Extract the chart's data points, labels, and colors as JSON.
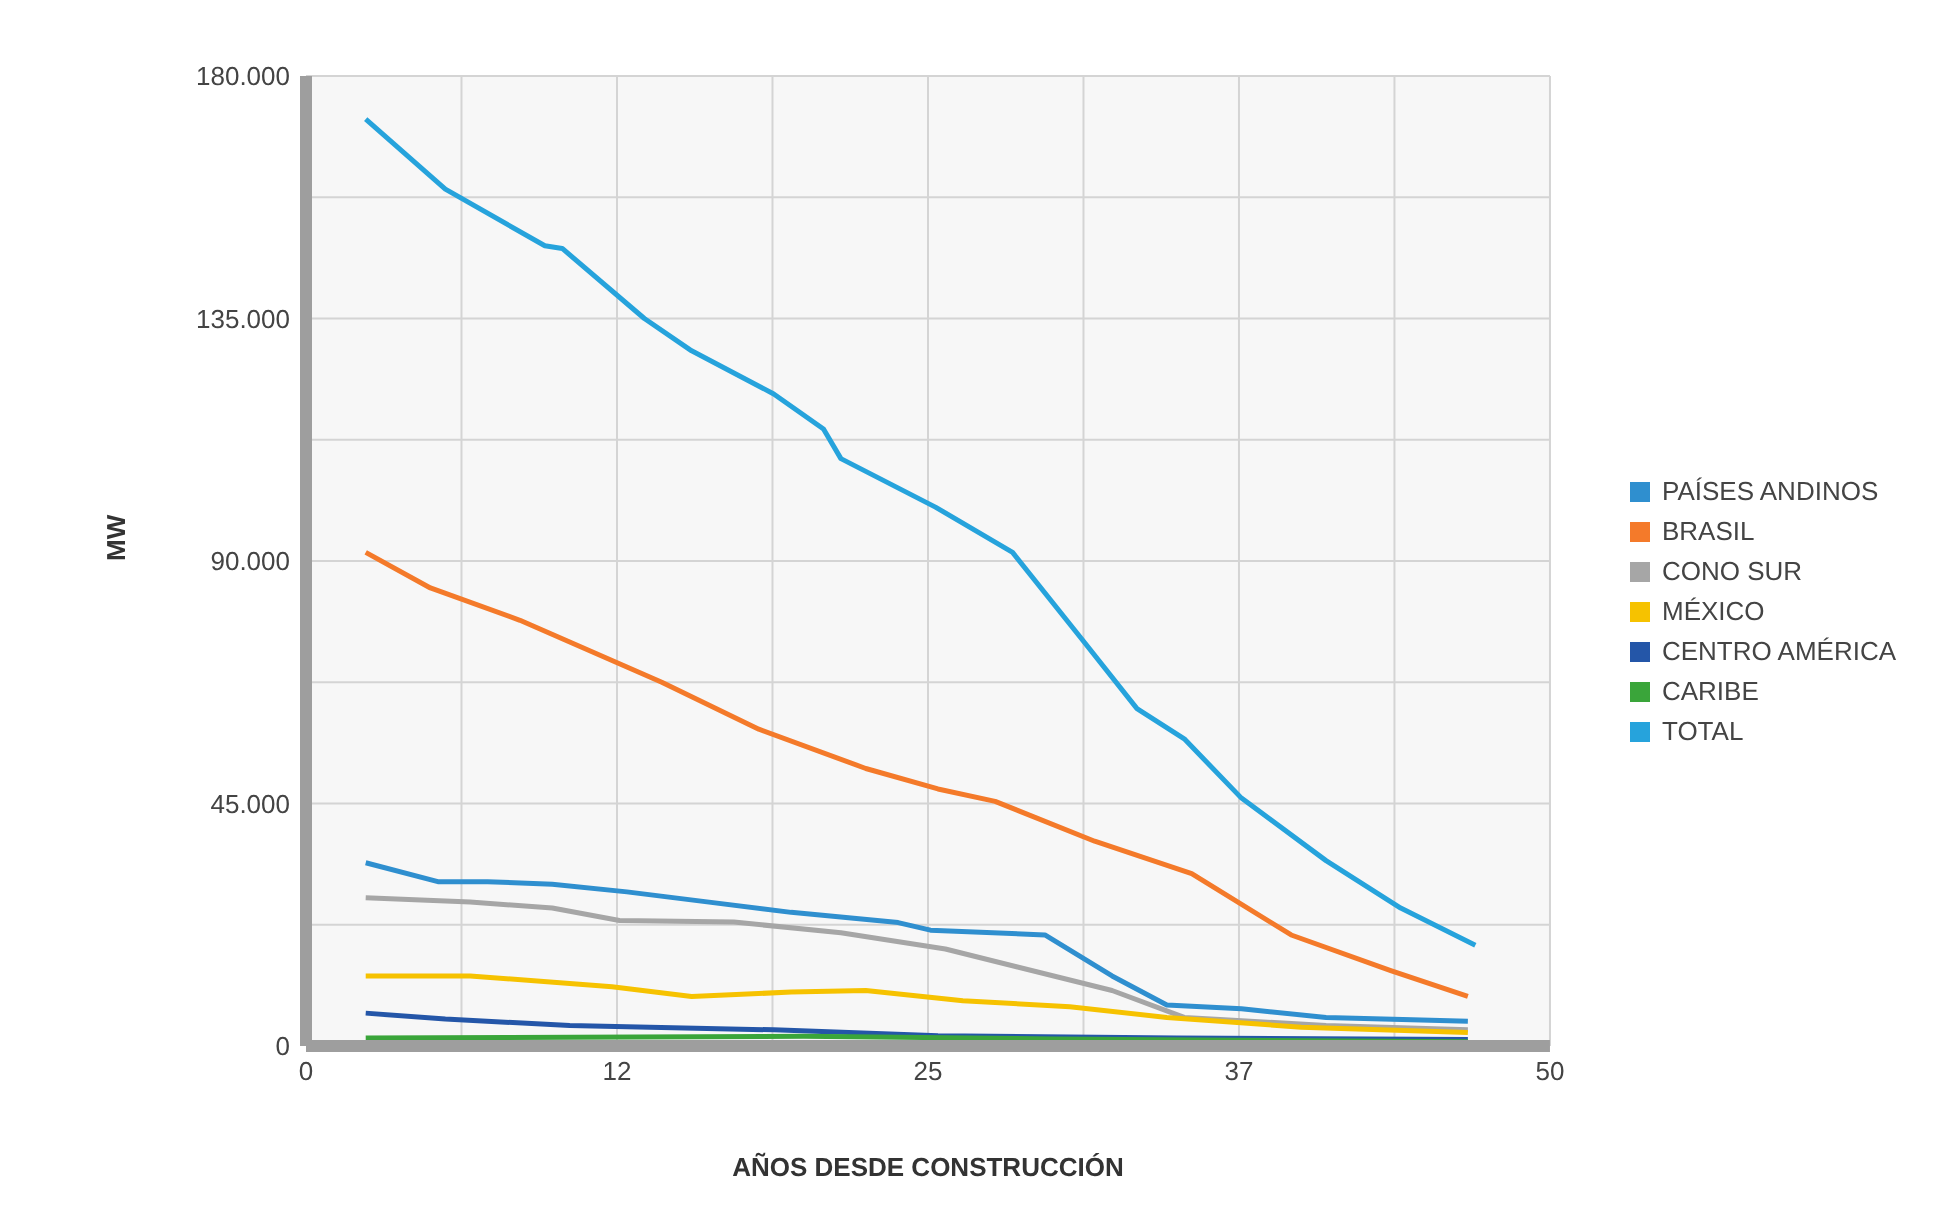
{
  "chart_data": {
    "type": "line",
    "xlabel": "AÑOS DESDE CONSTRUCCIÓN",
    "ylabel": "MW",
    "xlim": [
      0,
      50
    ],
    "xticks": [
      0,
      {
        "value": 6.25,
        "label": null
      },
      {
        "value": 12.5,
        "label": "12"
      },
      {
        "value": 18.75,
        "label": null
      },
      25,
      {
        "value": 31.25,
        "label": null
      },
      {
        "value": 37.5,
        "label": "37"
      },
      {
        "value": 43.75,
        "label": null
      },
      50
    ],
    "ylim": [
      0,
      180000
    ],
    "yticks": [
      0,
      {
        "value": 22500,
        "label": null
      },
      {
        "value": 45000,
        "label": "45.000"
      },
      {
        "value": 67500,
        "label": null
      },
      {
        "value": 90000,
        "label": "90.000"
      },
      {
        "value": 112500,
        "label": null
      },
      {
        "value": 135000,
        "label": "135.000"
      },
      {
        "value": 157500,
        "label": null
      },
      {
        "value": 180000,
        "label": "180.000"
      }
    ],
    "grid": true,
    "legend": "right",
    "marker": "none",
    "line_style": "solid",
    "series": [
      {
        "name": "PAÍSES ANDINOS",
        "color": "#2f8fcf",
        "x": [
          2.4,
          5.3,
          7.3,
          9.9,
          12.9,
          16.2,
          19.5,
          23.8,
          25.1,
          29.7,
          32.4,
          34.6,
          37.6,
          41,
          46.7
        ],
        "values": [
          34000,
          30500,
          30500,
          30000,
          28600,
          26700,
          24800,
          22900,
          21500,
          20600,
          13000,
          7600,
          6900,
          5300,
          4600
        ]
      },
      {
        "name": "BRASIL",
        "color": "#f47a2a",
        "x": [
          2.4,
          5,
          8.6,
          14.3,
          18.2,
          22.5,
          25.4,
          27.7,
          31.7,
          35.6,
          39.6,
          43.6,
          46.7
        ],
        "values": [
          91600,
          85000,
          79000,
          67500,
          58800,
          51500,
          47700,
          45400,
          38000,
          32000,
          20600,
          14000,
          9200
        ]
      },
      {
        "name": "CONO SUR",
        "color": "#a6a6a6",
        "x": [
          2.4,
          6.6,
          9.9,
          12.6,
          17.2,
          21.5,
          25.7,
          32.4,
          35.3,
          41,
          46.7
        ],
        "values": [
          27500,
          26700,
          25600,
          23300,
          23000,
          21000,
          18000,
          10300,
          5300,
          3800,
          3000
        ]
      },
      {
        "name": "MÉXICO",
        "color": "#f6c200",
        "x": [
          2.4,
          6.6,
          12.3,
          15.5,
          19.5,
          22.5,
          26.4,
          30.7,
          34.6,
          40,
          46.7
        ],
        "values": [
          13000,
          13000,
          11000,
          9200,
          10000,
          10300,
          8400,
          7300,
          5300,
          3500,
          2500
        ]
      },
      {
        "name": "CENTRO AMÉRICA",
        "color": "#2456a8",
        "x": [
          2.4,
          5.6,
          10.6,
          18.8,
          25.4,
          35,
          46.7
        ],
        "values": [
          6100,
          5000,
          3800,
          3000,
          1900,
          1500,
          1200
        ]
      },
      {
        "name": "CARIBE",
        "color": "#3aa53a",
        "x": [
          2.4,
          20,
          30,
          46.7
        ],
        "values": [
          1500,
          1800,
          1300,
          800
        ]
      },
      {
        "name": "TOTAL",
        "color": "#26a3dc",
        "x": [
          2.4,
          5.6,
          9.6,
          10.3,
          13.6,
          15.5,
          18.8,
          20.8,
          21.5,
          25.3,
          28.4,
          31.1,
          33.4,
          35.3,
          37.6,
          41,
          44,
          47
        ],
        "values": [
          172000,
          159000,
          148500,
          148000,
          135000,
          129000,
          121000,
          114500,
          109000,
          100000,
          91600,
          76000,
          62600,
          57000,
          46000,
          34400,
          25600,
          18700
        ]
      }
    ]
  }
}
